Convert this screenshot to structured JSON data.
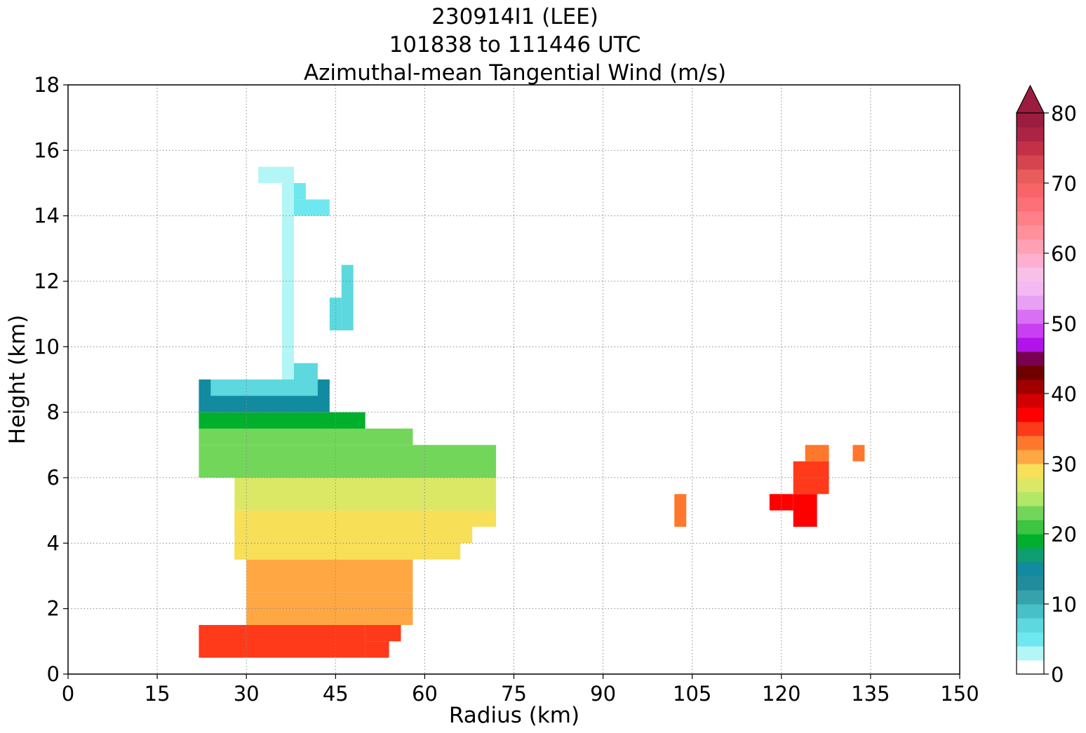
{
  "title_lines": [
    "230914I1 (LEE)",
    "101838 to 111446 UTC",
    "Azimuthal-mean Tangential Wind (m/s)"
  ],
  "chart_data": {
    "type": "heatmap",
    "title": "230914I1 (LEE)\n101838 to 111446 UTC\nAzimuthal-mean Tangential Wind (m/s)",
    "xlabel": "Radius (km)",
    "ylabel": "Height (km)",
    "xlim": [
      0,
      150
    ],
    "ylim": [
      0,
      18
    ],
    "xticks": [
      0,
      15,
      30,
      45,
      60,
      75,
      90,
      105,
      120,
      135,
      150
    ],
    "yticks": [
      0,
      2,
      4,
      6,
      8,
      10,
      12,
      14,
      16,
      18
    ],
    "grid": true,
    "grid_style": "dotted",
    "colorbar": {
      "min": 0,
      "max": 80,
      "step": 2,
      "ticks": [
        0,
        10,
        20,
        30,
        40,
        50,
        60,
        70,
        80
      ],
      "extend": "max",
      "placement": "right",
      "colors": [
        "#ffffff",
        "#b4f5f5",
        "#6ee8ee",
        "#5dd8df",
        "#48c0c8",
        "#35a2ac",
        "#218d9c",
        "#128a9f",
        "#0f9e72",
        "#00b02c",
        "#3cc442",
        "#72d65a",
        "#b2e866",
        "#dbe866",
        "#f7df58",
        "#ffa843",
        "#ff772d",
        "#ff3a1a",
        "#ff0000",
        "#d20000",
        "#a00000",
        "#700000",
        "#7a0050",
        "#b014ea",
        "#c840f2",
        "#d870f4",
        "#e8a0f4",
        "#f4b8f4",
        "#f8c0e6",
        "#ffb0d0",
        "#ffa0b4",
        "#ff909c",
        "#ff8088",
        "#fe7078",
        "#f86468",
        "#e85c5c",
        "#d64450",
        "#c43048",
        "#ac2444",
        "#9c1c40"
      ]
    },
    "regions": [
      {
        "value": 34,
        "cells": [
          [
            22,
            50,
            0.5,
            1.5
          ],
          [
            50,
            56,
            1,
            1.5
          ],
          [
            50,
            54,
            0.5,
            1
          ]
        ]
      },
      {
        "value": 30,
        "cells": [
          [
            30,
            56,
            1.5,
            2.5
          ],
          [
            56,
            58,
            1.5,
            2.5
          ],
          [
            30,
            58,
            2.5,
            3.5
          ]
        ]
      },
      {
        "value": 28,
        "cells": [
          [
            28,
            58,
            3.5,
            4
          ],
          [
            28,
            66,
            3.5,
            4
          ],
          [
            28,
            68,
            4,
            4.5
          ],
          [
            28,
            72,
            4.5,
            5
          ]
        ]
      },
      {
        "value": 26,
        "cells": [
          [
            28,
            72,
            5,
            6
          ]
        ]
      },
      {
        "value": 22,
        "cells": [
          [
            22,
            72,
            6,
            7
          ],
          [
            22,
            58,
            7,
            7.5
          ]
        ]
      },
      {
        "value": 18,
        "cells": [
          [
            22,
            50,
            7.5,
            8
          ]
        ]
      },
      {
        "value": 14,
        "cells": [
          [
            22,
            44,
            8,
            9
          ]
        ]
      },
      {
        "value": 6,
        "cells": [
          [
            24,
            42,
            8.5,
            9
          ],
          [
            36,
            42,
            9,
            9.5
          ]
        ]
      },
      {
        "value": 2,
        "cells": [
          [
            36,
            38,
            9,
            15.5
          ],
          [
            32,
            36,
            15,
            15.5
          ]
        ]
      },
      {
        "value": 6,
        "cells": [
          [
            46,
            48,
            10.5,
            12.5
          ],
          [
            44,
            46,
            10.5,
            11.5
          ]
        ]
      },
      {
        "value": 4,
        "cells": [
          [
            38,
            44,
            14,
            14.5
          ],
          [
            38,
            40,
            14.5,
            15
          ]
        ]
      },
      {
        "value": 32,
        "cells": [
          [
            102,
            104,
            4.5,
            5.5
          ],
          [
            124,
            128,
            6.5,
            7
          ],
          [
            132,
            134,
            6.5,
            7
          ]
        ]
      },
      {
        "value": 36,
        "cells": [
          [
            118,
            122,
            5,
            5.5
          ],
          [
            122,
            126,
            4.5,
            5.5
          ]
        ]
      },
      {
        "value": 34,
        "cells": [
          [
            122,
            128,
            5.5,
            6.5
          ]
        ]
      }
    ]
  }
}
